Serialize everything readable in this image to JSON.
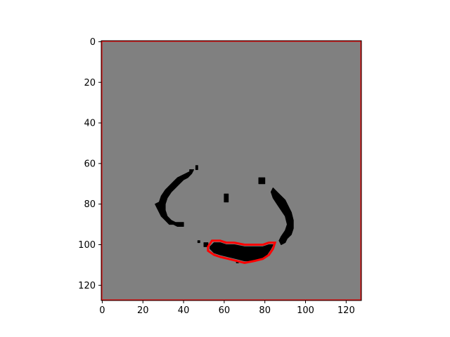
{
  "chart_data": {
    "type": "heatmap",
    "title": "",
    "xlabel": "",
    "ylabel": "",
    "xlim": [
      -0.5,
      127.5
    ],
    "ylim": [
      127.5,
      -0.5
    ],
    "grid": false,
    "x_ticks": [
      0,
      20,
      40,
      60,
      80,
      100,
      120
    ],
    "y_ticks": [
      0,
      20,
      40,
      60,
      80,
      100,
      120
    ],
    "x_tick_labels": [
      "0",
      "20",
      "40",
      "60",
      "80",
      "100",
      "120"
    ],
    "y_tick_labels": [
      "0",
      "20",
      "40",
      "60",
      "80",
      "100",
      "120"
    ],
    "colors": {
      "background_value": "#808080",
      "mask_value": "#000000",
      "contour": "#ff0000"
    },
    "blobs": [
      {
        "name": "left-arc",
        "points": [
          [
            28,
            79
          ],
          [
            29,
            76
          ],
          [
            31,
            73
          ],
          [
            33,
            71
          ],
          [
            35,
            69
          ],
          [
            37,
            67
          ],
          [
            39,
            66
          ],
          [
            41,
            65
          ],
          [
            43,
            64
          ],
          [
            43,
            63
          ],
          [
            45,
            63
          ],
          [
            44,
            65
          ],
          [
            42,
            67
          ],
          [
            40,
            68
          ],
          [
            38,
            70
          ],
          [
            36,
            72
          ],
          [
            34,
            74
          ],
          [
            32,
            77
          ],
          [
            31,
            80
          ],
          [
            31,
            83
          ],
          [
            32,
            86
          ],
          [
            34,
            88
          ],
          [
            36,
            89
          ],
          [
            38,
            89
          ],
          [
            40,
            89
          ],
          [
            40,
            91
          ],
          [
            37,
            91
          ],
          [
            35,
            90
          ],
          [
            33,
            90
          ],
          [
            31,
            88
          ],
          [
            29,
            86
          ],
          [
            28,
            84
          ],
          [
            27,
            82
          ],
          [
            26,
            80
          ]
        ]
      },
      {
        "name": "right-arc",
        "points": [
          [
            84,
            72
          ],
          [
            86,
            74
          ],
          [
            88,
            76
          ],
          [
            90,
            78
          ],
          [
            91,
            80
          ],
          [
            93,
            84
          ],
          [
            94,
            88
          ],
          [
            94,
            92
          ],
          [
            93,
            95
          ],
          [
            91,
            97
          ],
          [
            90,
            99
          ],
          [
            88,
            100
          ],
          [
            87,
            98
          ],
          [
            88,
            96
          ],
          [
            90,
            93
          ],
          [
            91,
            90
          ],
          [
            90,
            86
          ],
          [
            88,
            83
          ],
          [
            86,
            80
          ],
          [
            84,
            77
          ],
          [
            83,
            74
          ]
        ]
      },
      {
        "name": "bottom-mouth",
        "points": [
          [
            53,
            101
          ],
          [
            55,
            99
          ],
          [
            58,
            99
          ],
          [
            61,
            100
          ],
          [
            65,
            100
          ],
          [
            70,
            101
          ],
          [
            75,
            101
          ],
          [
            79,
            101
          ],
          [
            82,
            100
          ],
          [
            84,
            100
          ],
          [
            83,
            102
          ],
          [
            81,
            105
          ],
          [
            78,
            107
          ],
          [
            74,
            108
          ],
          [
            70,
            108
          ],
          [
            66,
            107
          ],
          [
            62,
            106
          ],
          [
            58,
            105
          ],
          [
            55,
            104
          ],
          [
            53,
            102
          ]
        ]
      },
      {
        "name": "dot-1",
        "points": [
          [
            60,
            75
          ],
          [
            62,
            75
          ],
          [
            62,
            79
          ],
          [
            60,
            79
          ]
        ]
      },
      {
        "name": "dot-2",
        "points": [
          [
            77,
            67
          ],
          [
            80,
            67
          ],
          [
            80,
            70
          ],
          [
            77,
            70
          ]
        ]
      },
      {
        "name": "dot-3",
        "points": [
          [
            50,
            99
          ],
          [
            52,
            99
          ],
          [
            52,
            101
          ],
          [
            50,
            101
          ]
        ]
      },
      {
        "name": "dot-4",
        "points": [
          [
            47,
            98
          ],
          [
            48,
            98
          ],
          [
            48,
            99
          ],
          [
            47,
            99
          ]
        ]
      },
      {
        "name": "dot-5",
        "points": [
          [
            46,
            61
          ],
          [
            47,
            61
          ],
          [
            47,
            63
          ],
          [
            46,
            63
          ]
        ]
      },
      {
        "name": "dot-6",
        "points": [
          [
            66,
            108
          ],
          [
            67,
            108
          ],
          [
            67,
            109
          ],
          [
            66,
            109
          ]
        ]
      }
    ],
    "contours": [
      {
        "name": "mouth-contour",
        "points": [
          [
            52,
            101
          ],
          [
            54,
            98
          ],
          [
            58,
            98
          ],
          [
            61,
            99
          ],
          [
            65,
            99
          ],
          [
            70,
            100
          ],
          [
            75,
            100
          ],
          [
            79,
            100
          ],
          [
            82,
            99
          ],
          [
            85,
            99
          ],
          [
            84,
            102
          ],
          [
            82,
            105
          ],
          [
            79,
            107
          ],
          [
            75,
            108
          ],
          [
            70,
            109
          ],
          [
            66,
            108
          ],
          [
            62,
            107
          ],
          [
            58,
            106
          ],
          [
            55,
            105
          ],
          [
            52,
            103
          ]
        ]
      },
      {
        "name": "border-contour",
        "points": [
          [
            -0.5,
            -0.5
          ],
          [
            127.5,
            -0.5
          ],
          [
            127.5,
            127.5
          ],
          [
            -0.5,
            127.5
          ]
        ]
      }
    ]
  }
}
